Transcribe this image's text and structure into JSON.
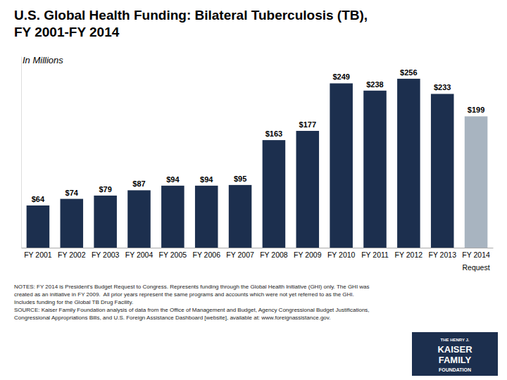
{
  "chart_data": {
    "type": "bar",
    "title": [
      "U.S. Global Health Funding: Bilateral Tuberculosis (TB),",
      "FY 2001-FY 2014"
    ],
    "subtitle": "In Millions",
    "categories": [
      "FY 2001",
      "FY 2002",
      "FY 2003",
      "FY 2004",
      "FY 2005",
      "FY 2006",
      "FY 2007",
      "FY 2008",
      "FY 2009",
      "FY 2010",
      "FY 2011",
      "FY 2012",
      "FY 2013",
      "FY 2014"
    ],
    "values": [
      64,
      74,
      79,
      87,
      94,
      94,
      95,
      163,
      177,
      249,
      238,
      256,
      233,
      199
    ],
    "value_labels": [
      "$64",
      "$74",
      "$79",
      "$87",
      "$94",
      "$94",
      "$95",
      "$163",
      "$177",
      "$249",
      "$238",
      "$256",
      "$233",
      "$199"
    ],
    "colors": [
      "#1c2f4e",
      "#1c2f4e",
      "#1c2f4e",
      "#1c2f4e",
      "#1c2f4e",
      "#1c2f4e",
      "#1c2f4e",
      "#1c2f4e",
      "#1c2f4e",
      "#1c2f4e",
      "#1c2f4e",
      "#1c2f4e",
      "#1c2f4e",
      "#a8b4c0"
    ],
    "data_labels": true,
    "ylim": [
      0,
      290
    ],
    "tick_labels": "x",
    "grid": false,
    "annotations": [
      "Request"
    ],
    "notes": [
      "NOTES: FY 2014 is President’s Budget Request to Congress. Represents funding through the Global Health Initiative (GHI) only. The GHI was",
      "created as an initiative in FY 2009.  All prior years represent the same programs and accounts which were not yet referred to as the GHI.",
      "Includes funding for the Global TB Drug Facility.",
      "SOURCE: Kaiser Family Foundation analysis of data from the Office of Management and Budget, Agency Congressional Budget Justifications,",
      "Congressional Appropriations Bills, and U.S. Foreign Assistance Dashboard [website], available at: www.foreignassistance.gov."
    ],
    "logo": {
      "lines": [
        "THE HENRY J.",
        "KAISER",
        "FAMILY",
        "FOUNDATION"
      ],
      "color": "#1c2f4e"
    }
  }
}
